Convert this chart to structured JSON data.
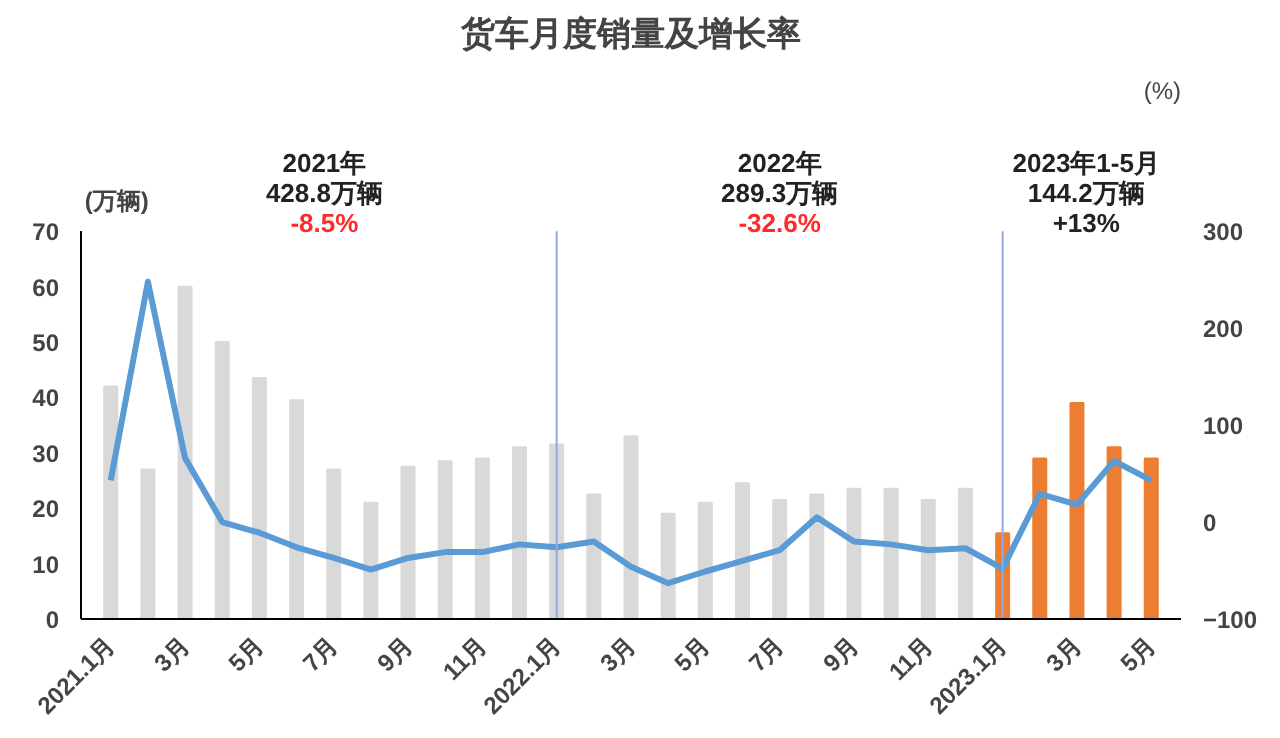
{
  "chart_data": {
    "type": "bar",
    "title": "货车月度销量及增长率",
    "ylabel": "(万辆)",
    "y2label": "(%)",
    "categories": [
      "2021.1月",
      null,
      "3月",
      null,
      "5月",
      null,
      "7月",
      null,
      "9月",
      null,
      "11月",
      null,
      "2022.1月",
      null,
      "3月",
      null,
      "5月",
      null,
      "7月",
      null,
      "9月",
      null,
      "11月",
      null,
      "2023.1月",
      null,
      "3月",
      null,
      "5月"
    ],
    "series": [
      {
        "type": "bar",
        "values": [
          42,
          27,
          60,
          50,
          43.5,
          39.5,
          27,
          21,
          27.5,
          28.5,
          29,
          31,
          31.5,
          22.5,
          33,
          19,
          21,
          24.5,
          21.5,
          22.5,
          23.5,
          23.5,
          21.5,
          23.5,
          15.5,
          29,
          39,
          31,
          29
        ],
        "colors": [
          "#d9d9d9",
          "#d9d9d9",
          "#d9d9d9",
          "#d9d9d9",
          "#d9d9d9",
          "#d9d9d9",
          "#d9d9d9",
          "#d9d9d9",
          "#d9d9d9",
          "#d9d9d9",
          "#d9d9d9",
          "#d9d9d9",
          "#d9d9d9",
          "#d9d9d9",
          "#d9d9d9",
          "#d9d9d9",
          "#d9d9d9",
          "#d9d9d9",
          "#d9d9d9",
          "#d9d9d9",
          "#d9d9d9",
          "#d9d9d9",
          "#d9d9d9",
          "#d9d9d9",
          "#ed7d31",
          "#ed7d31",
          "#ed7d31",
          "#ed7d31",
          "#ed7d31"
        ]
      },
      {
        "type": "line",
        "axis": "y2",
        "color": "#5b9bd5",
        "values": [
          43,
          248,
          66,
          0,
          -11,
          -26,
          -37,
          -49,
          -37,
          -31,
          -31,
          -23,
          -26,
          -20,
          -46,
          -63,
          -51,
          -40,
          -29,
          5,
          -20,
          -23,
          -29,
          -27,
          -48,
          29,
          18,
          63,
          43
        ]
      }
    ],
    "ylim": [
      0,
      70
    ],
    "yticks": [
      0,
      10,
      20,
      30,
      40,
      50,
      60,
      70
    ],
    "y2lim": [
      -100,
      300
    ],
    "y2ticks": [
      -100,
      0,
      100,
      200,
      300
    ],
    "ref_lines": [
      {
        "axis": "x",
        "value": "2022.1月",
        "color": "#8faadc"
      },
      {
        "axis": "x",
        "value": "2023.1月",
        "color": "#8faadc"
      }
    ],
    "annotations": [
      "2021年\n428.8万辆\n-8.5%",
      "2022年\n289.3万辆\n-32.6%",
      "2023年1-5月\n144.2万辆\n+13%"
    ],
    "grid": false
  }
}
